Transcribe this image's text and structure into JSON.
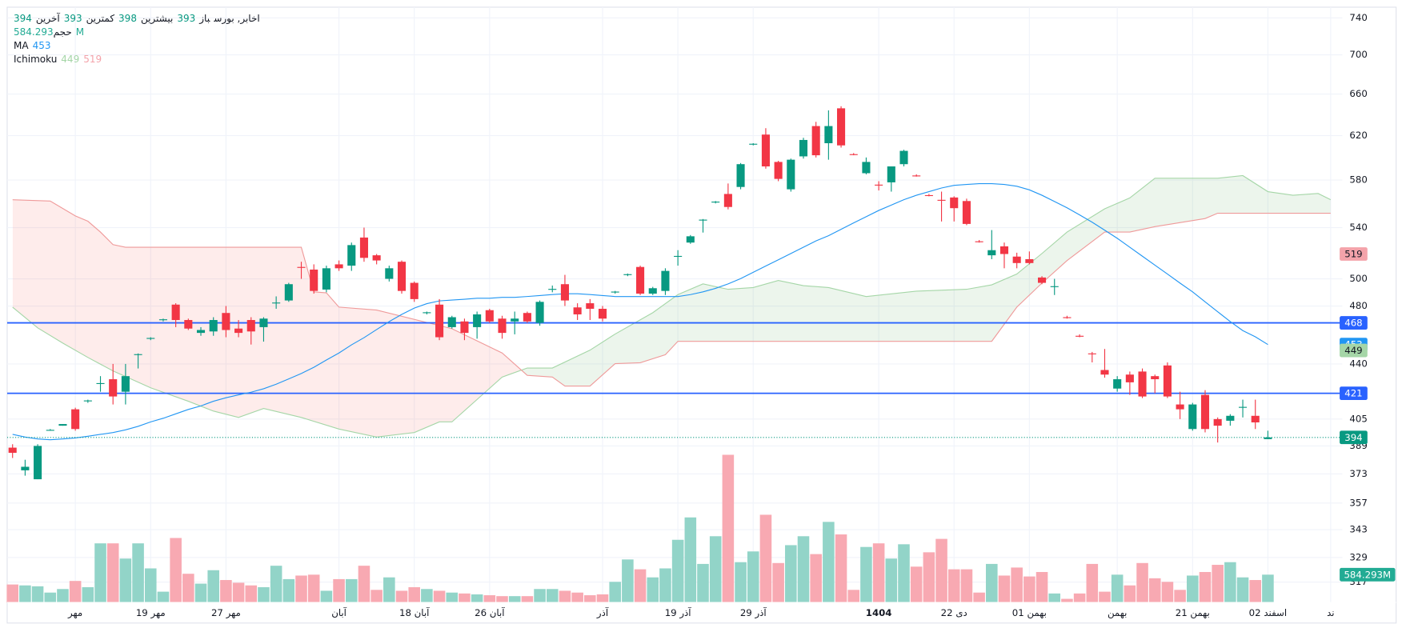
{
  "chart_data": {
    "type": "candlestick",
    "header": {
      "symbol": "اخابر, بورس",
      "stats": [
        {
          "label": "باز",
          "value": 393
        },
        {
          "label": "بیشترین",
          "value": 398
        },
        {
          "label": "کمترین",
          "value": 393
        },
        {
          "label": "آخرین",
          "value": 394
        }
      ],
      "volume": {
        "label": "حجم",
        "value": 584.293,
        "value_label": "584.293M",
        "color": "#22ab94"
      },
      "ma": {
        "label": "MA",
        "value": 453,
        "color": "#2196f3"
      },
      "ichimoku": {
        "label": "Ichimoku",
        "values": [
          449,
          519
        ],
        "colors": [
          "#a5d6a7",
          "#f4a3aa"
        ]
      }
    },
    "open": [
      388,
      375,
      370,
      398,
      401,
      411,
      416,
      427,
      430,
      422,
      446,
      457,
      470,
      481,
      470,
      461,
      462,
      475,
      464,
      470,
      465,
      482,
      484,
      509,
      507,
      492,
      511,
      510,
      532,
      518,
      500,
      513,
      497,
      475,
      481,
      465,
      469,
      465,
      477,
      471,
      469,
      475,
      468,
      492,
      496,
      479,
      482,
      478,
      490,
      503,
      509,
      489,
      491,
      517,
      528,
      546,
      561,
      568,
      574,
      612,
      621,
      596,
      572,
      601,
      629,
      613,
      646,
      603,
      586,
      576,
      578,
      594,
      584,
      567,
      563,
      565,
      562,
      529,
      518,
      525,
      517,
      515,
      501,
      494,
      472,
      459,
      447,
      436,
      424,
      433,
      435,
      432,
      439,
      414,
      399,
      420,
      405,
      404,
      412,
      407,
      393
    ],
    "high": [
      390,
      381,
      390,
      399,
      402,
      412,
      417,
      432,
      440,
      440,
      447,
      458,
      471,
      482,
      471,
      465,
      472,
      480,
      470,
      472,
      472,
      487,
      497,
      513,
      511,
      510,
      514,
      528,
      540,
      519,
      510,
      514,
      498,
      476,
      485,
      473,
      471,
      476,
      478,
      473,
      476,
      476,
      484,
      495,
      503,
      482,
      485,
      480,
      491,
      504,
      510,
      494,
      508,
      522,
      534,
      547,
      562,
      577,
      595,
      613,
      627,
      597,
      599,
      618,
      633,
      644,
      648,
      604,
      600,
      579,
      592,
      607,
      585,
      568,
      570,
      566,
      564,
      530,
      538,
      528,
      520,
      521,
      502,
      500,
      473,
      460,
      448,
      450,
      432,
      435,
      437,
      433,
      441,
      422,
      415,
      423,
      406,
      408,
      417,
      417,
      398
    ],
    "low": [
      382,
      372,
      370,
      398,
      401,
      398,
      415,
      422,
      414,
      414,
      437,
      456,
      469,
      465,
      463,
      459,
      459,
      458,
      458,
      453,
      455,
      478,
      483,
      500,
      489,
      490,
      506,
      506,
      513,
      511,
      498,
      489,
      483,
      474,
      456,
      464,
      456,
      457,
      468,
      457,
      460,
      468,
      466,
      490,
      480,
      470,
      470,
      469,
      489,
      502,
      488,
      488,
      488,
      510,
      527,
      536,
      560,
      555,
      572,
      611,
      590,
      579,
      570,
      599,
      600,
      598,
      609,
      602,
      585,
      571,
      570,
      592,
      583,
      566,
      545,
      545,
      542,
      528,
      515,
      508,
      508,
      511,
      496,
      488,
      471,
      458,
      441,
      431,
      422,
      420,
      418,
      421,
      418,
      405,
      398,
      397,
      391,
      401,
      406,
      399,
      393
    ],
    "close": [
      385,
      377,
      389,
      398.5,
      402,
      399,
      416.5,
      427.5,
      419,
      432,
      446.5,
      457.5,
      470.5,
      470,
      464,
      463,
      470,
      463,
      461,
      462,
      471,
      482.5,
      496,
      508.5,
      491,
      508,
      508,
      526,
      516,
      514,
      508,
      491,
      485,
      475.5,
      458,
      472,
      461,
      474,
      469,
      461,
      471,
      469,
      483,
      492.5,
      484,
      474,
      478,
      471,
      490.5,
      503.5,
      489,
      493,
      506,
      517.5,
      533,
      546.5,
      561.5,
      557,
      594,
      612.5,
      592,
      581,
      598,
      616,
      602,
      629,
      611,
      602.5,
      596,
      575.5,
      592,
      606,
      583.5,
      566.5,
      562.5,
      556,
      543,
      528.5,
      522,
      519,
      512,
      512,
      497,
      494.5,
      471.5,
      458.5,
      446.5,
      433,
      430,
      428,
      419,
      430,
      419,
      411,
      414,
      399,
      401,
      407,
      412.5,
      403,
      394
    ],
    "up_color": "#089981",
    "down_color": "#f23645",
    "volume": {
      "values": [
        377,
        358,
        339,
        207,
        282,
        452,
        320,
        1243,
        1243,
        923,
        1243,
        716,
        226,
        1356,
        603,
        395,
        678,
        471,
        414,
        358,
        320,
        772,
        490,
        565,
        584,
        245,
        490,
        490,
        772,
        264,
        527,
        245,
        320,
        282,
        245,
        207,
        188,
        169,
        151,
        132,
        132,
        132,
        282,
        282,
        245,
        207,
        151,
        169,
        433,
        904,
        697,
        527,
        716,
        1318,
        1789,
        810,
        1393,
        3107,
        847,
        1073,
        1845,
        829,
        1205,
        1393,
        1017,
        1695,
        1431,
        264,
        1167,
        1243,
        923,
        1224,
        753,
        1055,
        1337,
        697,
        697,
        207,
        810,
        565,
        734,
        546,
        640,
        188,
        75,
        188,
        810,
        226,
        584,
        358,
        829,
        508,
        433,
        264,
        565,
        640,
        791,
        847,
        527,
        471,
        584.293
      ],
      "up_color": "#92d4c8",
      "down_color": "#f8a9b2",
      "ylim": [
        0,
        4000
      ]
    },
    "ma": {
      "color": "#2196f3",
      "values": [
        395.8,
        394.2,
        393.1,
        392.6,
        393.1,
        393.7,
        394.7,
        395.8,
        396.9,
        398.5,
        400.6,
        403.3,
        405.5,
        408.2,
        410.9,
        413.1,
        416.0,
        418.2,
        420.0,
        421.7,
        423.9,
        426.8,
        430.2,
        433.7,
        437.8,
        442.6,
        447.3,
        452.8,
        457.7,
        463.3,
        468.9,
        474.0,
        478.5,
        481.7,
        483.7,
        484.3,
        484.9,
        485.6,
        485.6,
        486.3,
        486.3,
        486.9,
        487.6,
        488.3,
        488.9,
        488.9,
        488.3,
        487.6,
        486.9,
        486.9,
        486.9,
        486.9,
        486.9,
        486.9,
        488.3,
        490.3,
        492.9,
        496.2,
        500.2,
        504.9,
        509.7,
        514.5,
        519.4,
        524.3,
        529.3,
        533.5,
        538.6,
        543.8,
        548.9,
        554.1,
        558.6,
        563.1,
        566.9,
        570.0,
        573.1,
        575.4,
        576.2,
        576.9,
        576.9,
        576.2,
        574.6,
        571.5,
        566.9,
        561.6,
        556.3,
        550.4,
        544.4,
        537.9,
        531.4,
        524.3,
        517.3,
        510.4,
        503.6,
        496.8,
        490.3,
        483.0,
        475.9,
        468.9,
        462.6,
        458.3,
        453
      ]
    },
    "ichimoku": {
      "span_a": {
        "color": "#a5d6a7",
        "fill": "rgba(67,160,71,0.1)",
        "x": [
          0,
          2,
          4,
          6,
          8,
          11,
          14,
          16,
          18,
          20,
          23,
          26,
          29,
          32,
          34,
          35,
          37,
          39,
          41,
          43,
          46,
          48,
          51,
          53,
          55,
          57,
          59,
          61,
          63,
          65,
          68,
          72,
          76,
          78,
          80,
          82,
          84,
          87,
          89,
          91,
          96,
          98,
          100,
          102,
          104,
          105
        ],
        "values": [
          479.2,
          464.5,
          454.0,
          444.3,
          435.4,
          424.5,
          416.0,
          409.9,
          406.0,
          411.5,
          406.0,
          399.0,
          394.2,
          396.9,
          403.3,
          403.3,
          417.1,
          431.4,
          437.3,
          437.3,
          449.2,
          460.2,
          475.2,
          488.3,
          496.2,
          492.2,
          493.5,
          498.8,
          494.9,
          493.5,
          486.9,
          490.8,
          492.2,
          495.5,
          503.6,
          519.4,
          536.4,
          555.5,
          564.6,
          581.6,
          581.6,
          583.9,
          570.0,
          566.9,
          568.4,
          563.1
        ]
      },
      "span_b": {
        "color": "#ef9a9a",
        "fill": "rgba(244,67,54,0.1)",
        "x": [
          0,
          3,
          5,
          6,
          7,
          8,
          9,
          23,
          24,
          25,
          26,
          29,
          35,
          39,
          41,
          43,
          44,
          46,
          48,
          50,
          52,
          53,
          78,
          80,
          82,
          84,
          87,
          89,
          91,
          95,
          96,
          105
        ],
        "values": [
          563.1,
          562,
          549.6,
          545.2,
          536.4,
          526.4,
          524.3,
          524.3,
          490.3,
          489.6,
          479.2,
          477.1,
          463.9,
          447.3,
          432.5,
          431.4,
          425.6,
          425.6,
          440.2,
          440.8,
          446.1,
          455.2,
          455.2,
          479.2,
          496.8,
          513.9,
          536.4,
          536.4,
          540.8,
          547.4,
          551.8,
          551.8
        ]
      }
    },
    "levels": [
      468,
      421
    ],
    "level_color": "#2962ff",
    "xlim": [
      -0.43,
      105.93
    ],
    "xticks": [
      {
        "value": 5,
        "label": "مهر"
      },
      {
        "value": 11,
        "label": "19 مهر"
      },
      {
        "value": 17,
        "label": "27 مهر"
      },
      {
        "value": 26,
        "label": "آبان"
      },
      {
        "value": 32,
        "label": "18 آبان"
      },
      {
        "value": 38,
        "label": "26 آبان"
      },
      {
        "value": 47,
        "label": "آذر"
      },
      {
        "value": 53,
        "label": "19 آذر"
      },
      {
        "value": 59,
        "label": "29 آذر"
      },
      {
        "value": 69,
        "label": "1404",
        "bold": true
      },
      {
        "value": 75,
        "label": "22 دی"
      },
      {
        "value": 81,
        "label": "01 بهمن"
      },
      {
        "value": 88,
        "label": "بهمن"
      },
      {
        "value": 94,
        "label": "21 بهمن"
      },
      {
        "value": 100,
        "label": "02 اسفند"
      },
      {
        "value": 105,
        "label": "ند"
      }
    ],
    "ylim": [
      307.5,
      752
    ],
    "yticks": [
      740,
      700,
      660,
      620,
      580,
      540,
      500,
      480,
      440,
      405,
      389,
      373,
      357,
      343,
      329,
      317
    ],
    "log_scale": true,
    "grid": true
  }
}
